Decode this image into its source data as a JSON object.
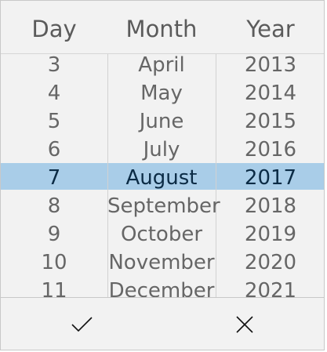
{
  "header": {
    "day_label": "Day",
    "month_label": "Month",
    "year_label": "Year"
  },
  "rows": [
    {
      "day": "3",
      "month": "April",
      "year": "2013"
    },
    {
      "day": "4",
      "month": "May",
      "year": "2014"
    },
    {
      "day": "5",
      "month": "June",
      "year": "2015"
    },
    {
      "day": "6",
      "month": "July",
      "year": "2016"
    },
    {
      "day": "7",
      "month": "August",
      "year": "2017"
    },
    {
      "day": "8",
      "month": "September",
      "year": "2018"
    },
    {
      "day": "9",
      "month": "October",
      "year": "2019"
    },
    {
      "day": "10",
      "month": "November",
      "year": "2020"
    },
    {
      "day": "11",
      "month": "December",
      "year": "2021"
    }
  ],
  "selected": {
    "day": "7",
    "month": "August",
    "year": "2017"
  },
  "footer": {
    "accept_icon": "checkmark-icon",
    "cancel_icon": "close-icon"
  },
  "colors": {
    "background": "#f2f2f2",
    "selection": "#a9cde8",
    "text": "#666666",
    "selected_text": "#0b2b45"
  }
}
